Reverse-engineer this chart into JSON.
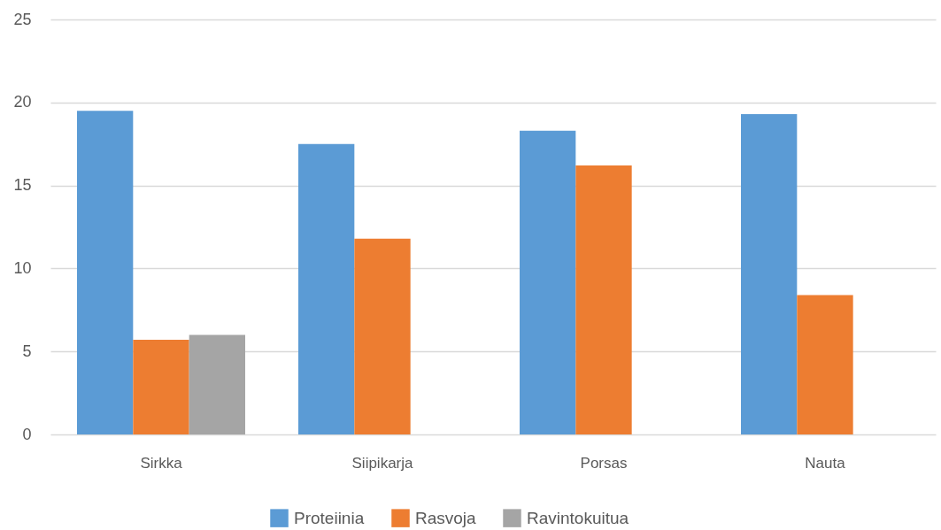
{
  "chart_data": {
    "type": "bar",
    "categories": [
      "Sirkka",
      "Siipikarja",
      "Porsas",
      "Nauta"
    ],
    "series": [
      {
        "name": "Proteiinia",
        "color": "#5b9bd5",
        "values": [
          19.5,
          17.5,
          18.3,
          19.3
        ]
      },
      {
        "name": "Rasvoja",
        "color": "#ed7d31",
        "values": [
          5.7,
          11.8,
          16.2,
          8.4
        ]
      },
      {
        "name": "Ravintokuitua",
        "color": "#a5a5a5",
        "values": [
          6.0,
          null,
          null,
          null
        ]
      }
    ],
    "ylim": [
      0,
      25
    ],
    "yticks": [
      0,
      5,
      10,
      15,
      20,
      25
    ],
    "grid": "y",
    "legend": "bottom"
  }
}
